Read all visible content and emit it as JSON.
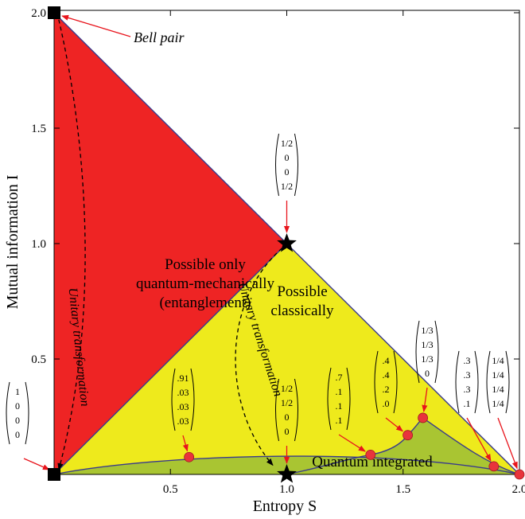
{
  "chart_data": {
    "type": "scatter",
    "xlabel": "Entropy S",
    "ylabel": "Mutual information I",
    "xlim": [
      0,
      2.0
    ],
    "ylim": [
      0,
      2.0
    ],
    "x_ticks": [
      "0.5",
      "1.0",
      "1.5",
      "2.0"
    ],
    "y_ticks": [
      "0.5",
      "1.0",
      "1.5",
      "2.0"
    ],
    "regions": [
      {
        "name": "entanglement",
        "label_lines": [
          "Possible only",
          "quantum-mechanically",
          "(entanglement)"
        ],
        "color": "#ee2424",
        "vertices": [
          [
            0,
            2.0
          ],
          [
            1.0,
            1.0
          ],
          [
            0,
            0
          ]
        ]
      },
      {
        "name": "classical",
        "label_lines": [
          "Possible",
          "classically"
        ],
        "color": "#eeea1c",
        "vertices": [
          [
            0,
            0
          ],
          [
            1.0,
            1.0
          ],
          [
            2.0,
            0
          ]
        ]
      },
      {
        "name": "quantum-integrated",
        "label_lines": [
          "Quantum integrated"
        ],
        "color": "#a9c532"
      }
    ],
    "special_points": [
      {
        "name": "Bell pair",
        "x": 0,
        "y": 2.0,
        "marker": "square",
        "label": "Bell pair"
      },
      {
        "name": "origin",
        "x": 0,
        "y": 0,
        "marker": "square",
        "vector": [
          "1",
          "0",
          "0",
          "0"
        ]
      },
      {
        "name": "classical-corner",
        "x": 1.0,
        "y": 1.0,
        "marker": "star",
        "vector": [
          "1/2",
          "0",
          "0",
          "1/2"
        ]
      },
      {
        "name": "bottom-star",
        "x": 1.0,
        "y": 0,
        "marker": "star",
        "vector": [
          "1/2",
          "1/2",
          "0",
          "0"
        ]
      }
    ],
    "series": [
      {
        "marker": "circle",
        "color": "#e8343c",
        "points": [
          {
            "x": 0.58,
            "y": 0.075,
            "vector": [
              ".91",
              ".03",
              ".03",
              ".03"
            ]
          },
          {
            "x": 1.36,
            "y": 0.085,
            "vector": [
              ".7",
              ".1",
              ".1",
              ".1"
            ]
          },
          {
            "x": 1.52,
            "y": 0.17,
            "vector": [
              ".4",
              ".4",
              ".2",
              ".0"
            ]
          },
          {
            "x": 1.585,
            "y": 0.245,
            "vector": [
              "1/3",
              "1/3",
              "1/3",
              "0"
            ]
          },
          {
            "x": 1.89,
            "y": 0.035,
            "vector": [
              ".3",
              ".3",
              ".3",
              ".1"
            ]
          },
          {
            "x": 2.0,
            "y": 0.0,
            "vector": [
              "1/4",
              "1/4",
              "1/4",
              "1/4"
            ]
          }
        ]
      }
    ],
    "annotations": [
      {
        "text": "Unitary transformation",
        "from": "Bell pair",
        "to": "origin"
      },
      {
        "text": "Unitary transformation",
        "from": "classical-corner",
        "to": "bottom-star"
      }
    ],
    "grid": false,
    "colors": {
      "boundary": "#3a3a8c",
      "arrow": "#e8141c",
      "marker_fill": "#e8343c"
    }
  }
}
